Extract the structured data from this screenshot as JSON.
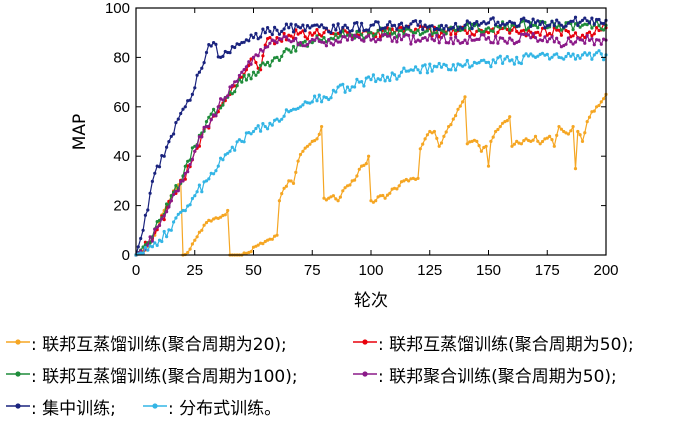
{
  "chart_data": {
    "type": "line",
    "xlabel": "轮次",
    "ylabel": "MAP",
    "xlim": [
      0,
      200
    ],
    "ylim": [
      0,
      100
    ],
    "xticks": [
      "0",
      "25",
      "50",
      "75",
      "100",
      "125",
      "150",
      "175",
      "200"
    ],
    "yticks": [
      "0",
      "20",
      "40",
      "60",
      "80",
      "100"
    ],
    "grid": false,
    "legend_position": "bottom",
    "series": [
      {
        "name": "联邦互蒸馏训练(聚合周期为20)",
        "label": ": 联邦互蒸馏训练(聚合周期为20);",
        "color": "#F5A623",
        "points": [
          [
            0,
            0
          ],
          [
            4,
            2
          ],
          [
            8,
            8
          ],
          [
            12,
            18
          ],
          [
            16,
            26
          ],
          [
            19,
            30
          ],
          [
            20,
            0
          ],
          [
            22,
            1
          ],
          [
            25,
            6
          ],
          [
            28,
            10
          ],
          [
            31,
            14
          ],
          [
            34,
            15
          ],
          [
            37,
            16
          ],
          [
            39,
            18
          ],
          [
            40,
            0
          ],
          [
            44,
            0
          ],
          [
            48,
            1
          ],
          [
            52,
            4
          ],
          [
            56,
            6
          ],
          [
            60,
            8
          ],
          [
            61,
            22
          ],
          [
            63,
            27
          ],
          [
            65,
            30
          ],
          [
            67,
            29
          ],
          [
            69,
            38
          ],
          [
            71,
            42
          ],
          [
            73,
            44
          ],
          [
            75,
            46
          ],
          [
            77,
            47
          ],
          [
            79,
            52
          ],
          [
            80,
            23
          ],
          [
            82,
            23
          ],
          [
            84,
            24
          ],
          [
            86,
            22
          ],
          [
            88,
            26
          ],
          [
            90,
            28
          ],
          [
            92,
            30
          ],
          [
            94,
            32
          ],
          [
            96,
            36
          ],
          [
            98,
            37
          ],
          [
            99,
            40
          ],
          [
            100,
            22
          ],
          [
            102,
            22
          ],
          [
            104,
            24
          ],
          [
            106,
            23
          ],
          [
            108,
            25
          ],
          [
            110,
            27
          ],
          [
            112,
            28
          ],
          [
            114,
            30
          ],
          [
            116,
            30
          ],
          [
            118,
            31
          ],
          [
            120,
            31
          ],
          [
            121,
            43
          ],
          [
            123,
            47
          ],
          [
            125,
            50
          ],
          [
            127,
            50
          ],
          [
            129,
            44
          ],
          [
            131,
            48
          ],
          [
            133,
            52
          ],
          [
            135,
            55
          ],
          [
            137,
            59
          ],
          [
            139,
            62
          ],
          [
            140,
            64
          ],
          [
            141,
            45
          ],
          [
            143,
            46
          ],
          [
            145,
            46
          ],
          [
            147,
            42
          ],
          [
            149,
            44
          ],
          [
            150,
            36
          ],
          [
            151,
            46
          ],
          [
            153,
            50
          ],
          [
            155,
            52
          ],
          [
            157,
            54
          ],
          [
            159,
            56
          ],
          [
            160,
            44
          ],
          [
            162,
            46
          ],
          [
            164,
            45
          ],
          [
            166,
            47
          ],
          [
            168,
            46
          ],
          [
            170,
            48
          ],
          [
            172,
            45
          ],
          [
            174,
            47
          ],
          [
            176,
            48
          ],
          [
            178,
            44
          ],
          [
            180,
            52
          ],
          [
            182,
            50
          ],
          [
            184,
            49
          ],
          [
            186,
            52
          ],
          [
            187,
            35
          ],
          [
            188,
            50
          ],
          [
            190,
            46
          ],
          [
            192,
            54
          ],
          [
            194,
            58
          ],
          [
            196,
            60
          ],
          [
            198,
            62
          ],
          [
            200,
            65
          ]
        ]
      },
      {
        "name": "联邦互蒸馏训练(聚合周期为50)",
        "label": ": 联邦互蒸馏训练(聚合周期为50);",
        "color": "#E8000B",
        "points": [
          [
            0,
            0
          ],
          [
            5,
            4
          ],
          [
            10,
            12
          ],
          [
            15,
            22
          ],
          [
            20,
            30
          ],
          [
            25,
            42
          ],
          [
            30,
            52
          ],
          [
            35,
            58
          ],
          [
            40,
            65
          ],
          [
            45,
            72
          ],
          [
            50,
            80
          ],
          [
            53,
            75
          ],
          [
            55,
            85
          ],
          [
            58,
            87
          ],
          [
            60,
            88
          ],
          [
            65,
            89
          ],
          [
            70,
            90
          ],
          [
            75,
            89
          ],
          [
            80,
            90
          ],
          [
            85,
            89
          ],
          [
            90,
            90
          ],
          [
            95,
            89
          ],
          [
            100,
            90
          ],
          [
            110,
            90
          ],
          [
            120,
            91
          ],
          [
            130,
            90
          ],
          [
            140,
            91
          ],
          [
            150,
            90
          ],
          [
            160,
            91
          ],
          [
            170,
            90
          ],
          [
            180,
            91
          ],
          [
            190,
            89
          ],
          [
            200,
            92
          ]
        ]
      },
      {
        "name": "联邦互蒸馏训练(聚合周期为100)",
        "label": ": 联邦互蒸馏训练(聚合周期为100);",
        "color": "#1E8C3A",
        "points": [
          [
            0,
            0
          ],
          [
            5,
            5
          ],
          [
            10,
            14
          ],
          [
            15,
            24
          ],
          [
            20,
            32
          ],
          [
            25,
            44
          ],
          [
            30,
            54
          ],
          [
            35,
            60
          ],
          [
            40,
            66
          ],
          [
            45,
            70
          ],
          [
            50,
            74
          ],
          [
            55,
            77
          ],
          [
            60,
            80
          ],
          [
            65,
            83
          ],
          [
            70,
            85
          ],
          [
            75,
            86
          ],
          [
            80,
            88
          ],
          [
            90,
            89
          ],
          [
            100,
            90
          ],
          [
            110,
            90
          ],
          [
            120,
            91
          ],
          [
            130,
            91
          ],
          [
            140,
            92
          ],
          [
            150,
            92
          ],
          [
            160,
            93
          ],
          [
            170,
            93
          ],
          [
            180,
            93
          ],
          [
            190,
            93
          ],
          [
            200,
            93
          ]
        ]
      },
      {
        "name": "联邦聚合训练(聚合周期为50)",
        "label": ": 联邦聚合训练(聚合周期为50);",
        "color": "#8B1A89",
        "points": [
          [
            0,
            0
          ],
          [
            5,
            4
          ],
          [
            10,
            12
          ],
          [
            15,
            22
          ],
          [
            20,
            30
          ],
          [
            25,
            42
          ],
          [
            30,
            52
          ],
          [
            35,
            60
          ],
          [
            40,
            68
          ],
          [
            45,
            74
          ],
          [
            50,
            80
          ],
          [
            55,
            84
          ],
          [
            60,
            86
          ],
          [
            65,
            87
          ],
          [
            70,
            86
          ],
          [
            80,
            86
          ],
          [
            90,
            87
          ],
          [
            100,
            87
          ],
          [
            110,
            88
          ],
          [
            120,
            87
          ],
          [
            130,
            88
          ],
          [
            140,
            87
          ],
          [
            150,
            88
          ],
          [
            160,
            87
          ],
          [
            170,
            88
          ],
          [
            180,
            86
          ],
          [
            190,
            87
          ],
          [
            200,
            87
          ]
        ]
      },
      {
        "name": "集中训练",
        "label": ": 集中训练;",
        "color": "#1A237E",
        "points": [
          [
            0,
            0
          ],
          [
            3,
            10
          ],
          [
            6,
            25
          ],
          [
            9,
            36
          ],
          [
            12,
            40
          ],
          [
            15,
            48
          ],
          [
            18,
            55
          ],
          [
            21,
            60
          ],
          [
            24,
            65
          ],
          [
            27,
            74
          ],
          [
            30,
            82
          ],
          [
            33,
            86
          ],
          [
            36,
            80
          ],
          [
            39,
            82
          ],
          [
            42,
            84
          ],
          [
            45,
            86
          ],
          [
            50,
            88
          ],
          [
            55,
            90
          ],
          [
            60,
            91
          ],
          [
            65,
            92
          ],
          [
            70,
            92
          ],
          [
            80,
            92
          ],
          [
            90,
            92
          ],
          [
            100,
            93
          ],
          [
            110,
            93
          ],
          [
            120,
            93
          ],
          [
            130,
            93
          ],
          [
            140,
            93
          ],
          [
            150,
            94
          ],
          [
            160,
            94
          ],
          [
            170,
            94
          ],
          [
            180,
            94
          ],
          [
            190,
            95
          ],
          [
            200,
            95
          ]
        ]
      },
      {
        "name": "分布式训练",
        "label": ": 分布式训练。",
        "color": "#33B5E5",
        "points": [
          [
            0,
            0
          ],
          [
            5,
            2
          ],
          [
            10,
            6
          ],
          [
            15,
            10
          ],
          [
            20,
            18
          ],
          [
            25,
            24
          ],
          [
            30,
            30
          ],
          [
            35,
            36
          ],
          [
            40,
            42
          ],
          [
            45,
            46
          ],
          [
            50,
            50
          ],
          [
            55,
            52
          ],
          [
            60,
            55
          ],
          [
            65,
            58
          ],
          [
            70,
            60
          ],
          [
            75,
            62
          ],
          [
            80,
            64
          ],
          [
            85,
            66
          ],
          [
            90,
            68
          ],
          [
            95,
            70
          ],
          [
            100,
            71
          ],
          [
            110,
            73
          ],
          [
            120,
            75
          ],
          [
            130,
            76
          ],
          [
            140,
            77
          ],
          [
            150,
            78
          ],
          [
            160,
            79
          ],
          [
            170,
            80
          ],
          [
            180,
            80
          ],
          [
            190,
            81
          ],
          [
            200,
            81
          ]
        ]
      }
    ]
  }
}
